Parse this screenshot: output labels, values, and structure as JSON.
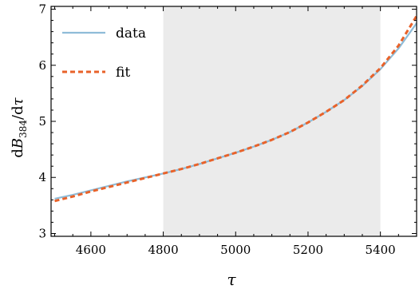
{
  "chart_data": {
    "type": "line",
    "xlabel": "τ",
    "ylabel": "dB₃₈₄/dτ",
    "ylabel_parts": {
      "prefix": "d",
      "var": "B",
      "sub": "384",
      "suffix": "/d",
      "var2": "τ"
    },
    "xlim": [
      4490,
      5500
    ],
    "ylim": [
      2.95,
      7.05
    ],
    "x_ticks": [
      4600,
      4800,
      5000,
      5200,
      5400
    ],
    "y_ticks": [
      3,
      4,
      5,
      6,
      7
    ],
    "grid": false,
    "legend": "top-left",
    "shaded_region": {
      "x_start": 4800,
      "x_end": 5400,
      "color": "#ebebeb"
    },
    "series": [
      {
        "name": "data",
        "style": "solid",
        "color": "#8fbcd8",
        "x": [
          4500,
          4550,
          4600,
          4650,
          4700,
          4750,
          4800,
          4850,
          4900,
          4950,
          5000,
          5050,
          5100,
          5150,
          5200,
          5250,
          5300,
          5350,
          5400,
          5450,
          5500
        ],
        "y": [
          3.62,
          3.69,
          3.77,
          3.85,
          3.93,
          4.0,
          4.07,
          4.15,
          4.24,
          4.34,
          4.44,
          4.55,
          4.67,
          4.81,
          4.98,
          5.17,
          5.38,
          5.63,
          5.93,
          6.3,
          6.75
        ]
      },
      {
        "name": "fit",
        "style": "dashed",
        "color": "#e8622a",
        "x": [
          4500,
          4550,
          4600,
          4650,
          4700,
          4750,
          4800,
          4850,
          4900,
          4950,
          5000,
          5050,
          5100,
          5150,
          5200,
          5250,
          5300,
          5350,
          5400,
          5450,
          5500
        ],
        "y": [
          3.58,
          3.66,
          3.75,
          3.83,
          3.91,
          3.99,
          4.07,
          4.15,
          4.24,
          4.34,
          4.44,
          4.55,
          4.67,
          4.81,
          4.98,
          5.17,
          5.38,
          5.64,
          5.95,
          6.35,
          6.88
        ]
      }
    ]
  }
}
